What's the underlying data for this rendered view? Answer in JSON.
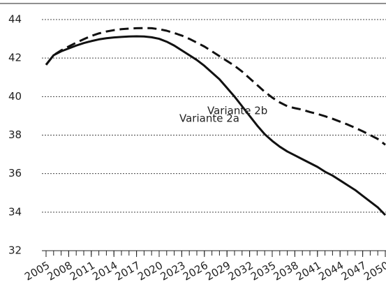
{
  "chart_data": {
    "type": "line",
    "x": [
      2005,
      2006,
      2007,
      2008,
      2009,
      2010,
      2011,
      2012,
      2013,
      2014,
      2015,
      2016,
      2017,
      2018,
      2019,
      2020,
      2021,
      2022,
      2023,
      2024,
      2025,
      2026,
      2027,
      2028,
      2029,
      2030,
      2031,
      2032,
      2033,
      2034,
      2035,
      2036,
      2037,
      2038,
      2039,
      2040,
      2041,
      2042,
      2043,
      2044,
      2045,
      2046,
      2047,
      2048,
      2049,
      2050
    ],
    "series": [
      {
        "name": "Variante 2a",
        "color": "#111111",
        "dash": "solid",
        "values": [
          41.65,
          42.15,
          42.35,
          42.5,
          42.65,
          42.78,
          42.88,
          42.97,
          43.03,
          43.07,
          43.1,
          43.12,
          43.13,
          43.12,
          43.08,
          43.0,
          42.85,
          42.65,
          42.4,
          42.15,
          41.9,
          41.6,
          41.25,
          40.9,
          40.45,
          40.0,
          39.5,
          39.0,
          38.5,
          38.05,
          37.7,
          37.4,
          37.15,
          36.95,
          36.75,
          36.55,
          36.35,
          36.1,
          35.9,
          35.65,
          35.4,
          35.15,
          34.85,
          34.55,
          34.25,
          33.85
        ]
      },
      {
        "name": "Variante 2b",
        "color": "#111111",
        "dash": "dashed",
        "values": [
          41.65,
          42.15,
          42.4,
          42.6,
          42.8,
          42.98,
          43.15,
          43.28,
          43.38,
          43.45,
          43.5,
          43.53,
          43.55,
          43.56,
          43.55,
          43.5,
          43.42,
          43.3,
          43.17,
          43.0,
          42.8,
          42.6,
          42.35,
          42.1,
          41.85,
          41.6,
          41.3,
          40.95,
          40.6,
          40.25,
          39.95,
          39.7,
          39.5,
          39.4,
          39.32,
          39.2,
          39.1,
          38.98,
          38.85,
          38.7,
          38.55,
          38.38,
          38.2,
          38.0,
          37.8,
          37.5
        ]
      }
    ],
    "xlim": [
      2005,
      2050
    ],
    "xticks": [
      2005,
      2008,
      2011,
      2014,
      2017,
      2020,
      2023,
      2026,
      2029,
      2032,
      2035,
      2038,
      2041,
      2044,
      2047,
      2050
    ],
    "ylim": [
      32,
      44
    ],
    "yticks": [
      32,
      34,
      36,
      38,
      40,
      42,
      44
    ],
    "grid": true
  }
}
